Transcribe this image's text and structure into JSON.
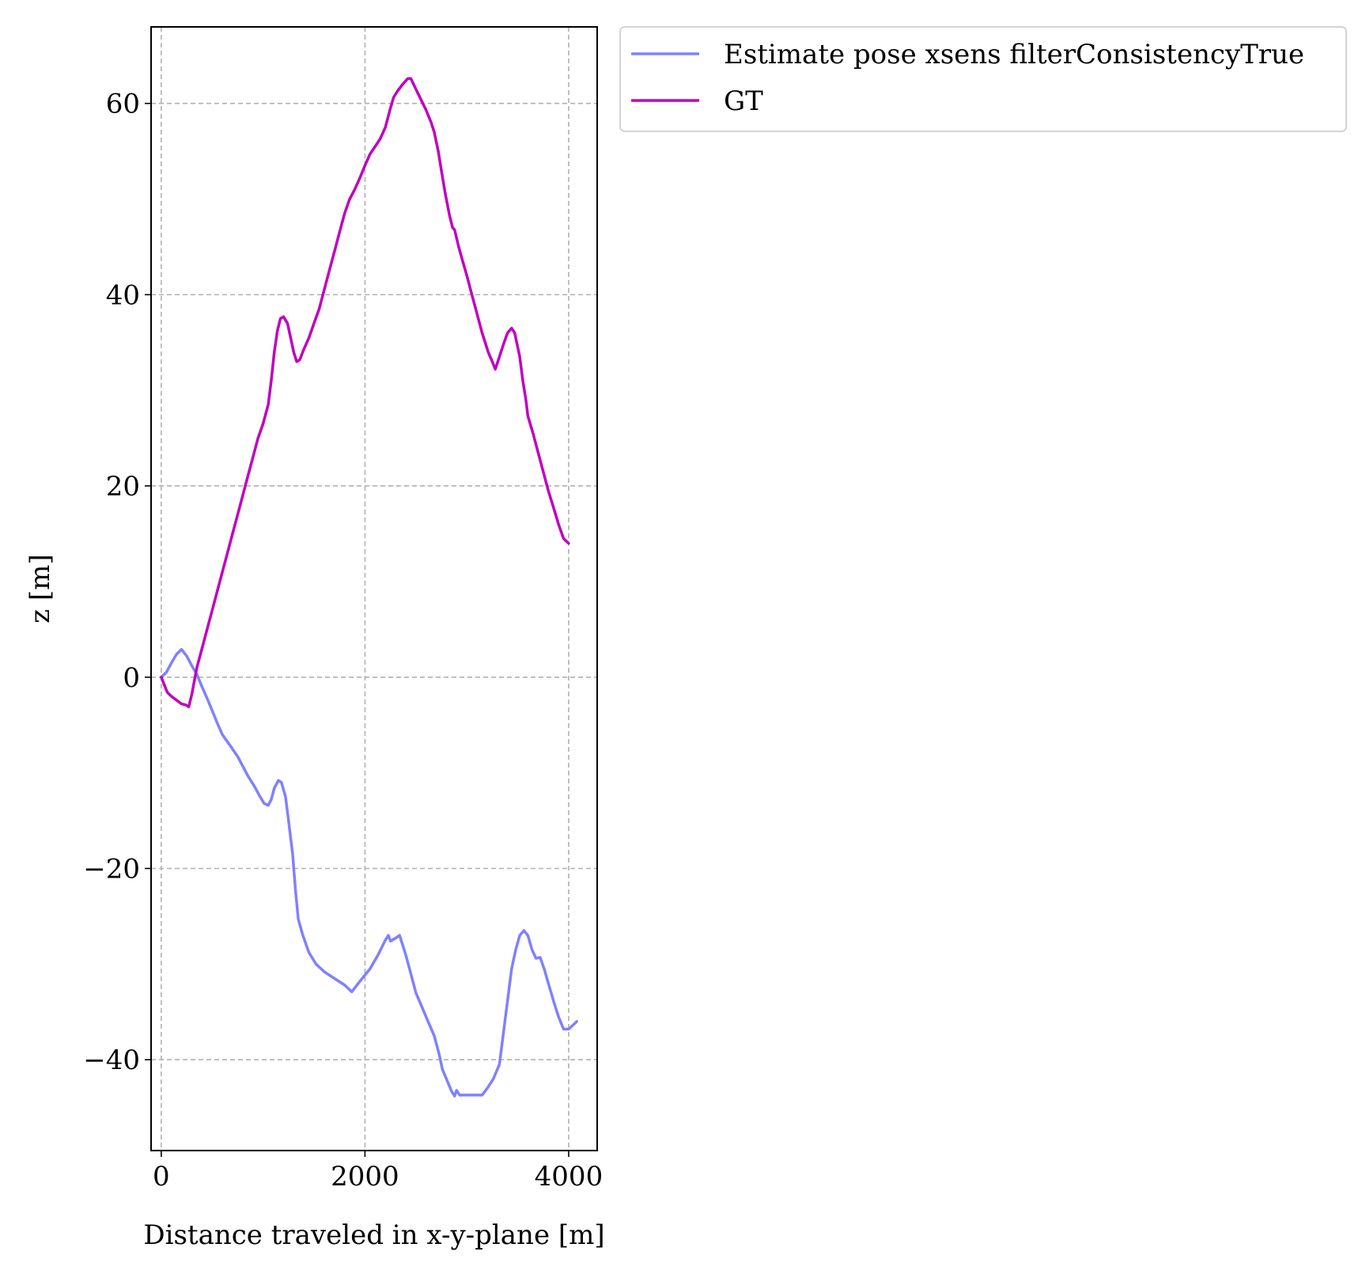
{
  "chart_data": {
    "type": "line",
    "title": "",
    "xlabel": "Distance traveled in x-y-plane [m]",
    "ylabel": "z [m]",
    "xlim": [
      -100,
      4280
    ],
    "ylim": [
      -49.5,
      68
    ],
    "xticks": [
      0,
      2000,
      4000
    ],
    "yticks": [
      -40,
      -20,
      0,
      20,
      40,
      60
    ],
    "xtick_labels": [
      "0",
      "2000",
      "4000"
    ],
    "ytick_labels": [
      "−40",
      "−20",
      "0",
      "20",
      "40",
      "60"
    ],
    "grid": true,
    "legend_position": "outside upper right",
    "series": [
      {
        "name": "Estimate pose xsens filterConsistencyTrue",
        "color": "#8080ff",
        "points": [
          [
            0,
            0
          ],
          [
            50,
            0.5
          ],
          [
            100,
            1.5
          ],
          [
            150,
            2.4
          ],
          [
            200,
            2.9
          ],
          [
            250,
            2.2
          ],
          [
            300,
            1.2
          ],
          [
            350,
            0.3
          ],
          [
            400,
            -1
          ],
          [
            450,
            -2.2
          ],
          [
            500,
            -3.5
          ],
          [
            550,
            -4.8
          ],
          [
            600,
            -6
          ],
          [
            680,
            -7.2
          ],
          [
            750,
            -8.3
          ],
          [
            800,
            -9.3
          ],
          [
            850,
            -10.3
          ],
          [
            920,
            -11.5
          ],
          [
            970,
            -12.5
          ],
          [
            1010,
            -13.2
          ],
          [
            1050,
            -13.4
          ],
          [
            1080,
            -12.8
          ],
          [
            1110,
            -11.6
          ],
          [
            1150,
            -10.8
          ],
          [
            1180,
            -11
          ],
          [
            1220,
            -12.5
          ],
          [
            1250,
            -15
          ],
          [
            1290,
            -18.5
          ],
          [
            1320,
            -22.5
          ],
          [
            1345,
            -25.3
          ],
          [
            1390,
            -27
          ],
          [
            1450,
            -28.8
          ],
          [
            1520,
            -30
          ],
          [
            1600,
            -30.8
          ],
          [
            1700,
            -31.5
          ],
          [
            1800,
            -32.2
          ],
          [
            1870,
            -32.9
          ],
          [
            1950,
            -31.8
          ],
          [
            2050,
            -30.5
          ],
          [
            2130,
            -29
          ],
          [
            2200,
            -27.5
          ],
          [
            2230,
            -27
          ],
          [
            2250,
            -27.6
          ],
          [
            2300,
            -27.3
          ],
          [
            2340,
            -27
          ],
          [
            2400,
            -29
          ],
          [
            2450,
            -31
          ],
          [
            2500,
            -33
          ],
          [
            2560,
            -34.5
          ],
          [
            2620,
            -36
          ],
          [
            2680,
            -37.5
          ],
          [
            2730,
            -39.5
          ],
          [
            2760,
            -41
          ],
          [
            2800,
            -42
          ],
          [
            2850,
            -43.3
          ],
          [
            2880,
            -43.8
          ],
          [
            2900,
            -43.2
          ],
          [
            2930,
            -43.7
          ],
          [
            3000,
            -43.7
          ],
          [
            3100,
            -43.7
          ],
          [
            3150,
            -43.7
          ],
          [
            3200,
            -43
          ],
          [
            3260,
            -42
          ],
          [
            3320,
            -40.5
          ],
          [
            3380,
            -35.5
          ],
          [
            3440,
            -30.5
          ],
          [
            3480,
            -28.5
          ],
          [
            3520,
            -27
          ],
          [
            3560,
            -26.5
          ],
          [
            3600,
            -27
          ],
          [
            3640,
            -28.5
          ],
          [
            3680,
            -29.4
          ],
          [
            3720,
            -29.3
          ],
          [
            3760,
            -30.5
          ],
          [
            3800,
            -32
          ],
          [
            3850,
            -33.8
          ],
          [
            3900,
            -35.5
          ],
          [
            3950,
            -36.8
          ],
          [
            4000,
            -36.8
          ],
          [
            4050,
            -36.3
          ],
          [
            4080,
            -36
          ]
        ]
      },
      {
        "name": "GT",
        "color": "#bf00bf",
        "points": [
          [
            0,
            0
          ],
          [
            30,
            -0.8
          ],
          [
            60,
            -1.6
          ],
          [
            100,
            -2
          ],
          [
            150,
            -2.4
          ],
          [
            200,
            -2.8
          ],
          [
            240,
            -2.9
          ],
          [
            270,
            -3.1
          ],
          [
            300,
            -1.8
          ],
          [
            350,
            1
          ],
          [
            400,
            3
          ],
          [
            450,
            5
          ],
          [
            500,
            7
          ],
          [
            550,
            9
          ],
          [
            600,
            11
          ],
          [
            650,
            13
          ],
          [
            700,
            15
          ],
          [
            750,
            17
          ],
          [
            800,
            19
          ],
          [
            850,
            21
          ],
          [
            900,
            23
          ],
          [
            950,
            25
          ],
          [
            1000,
            26.5
          ],
          [
            1050,
            28.5
          ],
          [
            1080,
            31
          ],
          [
            1110,
            34
          ],
          [
            1140,
            36.2
          ],
          [
            1170,
            37.5
          ],
          [
            1200,
            37.7
          ],
          [
            1240,
            37
          ],
          [
            1270,
            35.5
          ],
          [
            1300,
            34
          ],
          [
            1330,
            33
          ],
          [
            1360,
            33.2
          ],
          [
            1400,
            34.3
          ],
          [
            1450,
            35.5
          ],
          [
            1500,
            37
          ],
          [
            1550,
            38.5
          ],
          [
            1600,
            40.5
          ],
          [
            1650,
            42.5
          ],
          [
            1700,
            44.5
          ],
          [
            1750,
            46.5
          ],
          [
            1800,
            48.5
          ],
          [
            1850,
            50
          ],
          [
            1900,
            51
          ],
          [
            1950,
            52.2
          ],
          [
            2000,
            53.5
          ],
          [
            2050,
            54.7
          ],
          [
            2100,
            55.5
          ],
          [
            2150,
            56.3
          ],
          [
            2200,
            57.5
          ],
          [
            2250,
            59.5
          ],
          [
            2280,
            60.6
          ],
          [
            2320,
            61.3
          ],
          [
            2370,
            62
          ],
          [
            2420,
            62.6
          ],
          [
            2450,
            62.6
          ],
          [
            2500,
            61.5
          ],
          [
            2550,
            60.4
          ],
          [
            2600,
            59.3
          ],
          [
            2650,
            58
          ],
          [
            2680,
            57
          ],
          [
            2720,
            55
          ],
          [
            2750,
            53
          ],
          [
            2790,
            50.5
          ],
          [
            2830,
            48.3
          ],
          [
            2860,
            47
          ],
          [
            2880,
            46.8
          ],
          [
            2920,
            45
          ],
          [
            2960,
            43.5
          ],
          [
            3000,
            42
          ],
          [
            3050,
            40
          ],
          [
            3100,
            38
          ],
          [
            3150,
            36
          ],
          [
            3180,
            35
          ],
          [
            3210,
            34
          ],
          [
            3250,
            33
          ],
          [
            3280,
            32.2
          ],
          [
            3320,
            33.5
          ],
          [
            3360,
            34.8
          ],
          [
            3400,
            36
          ],
          [
            3440,
            36.5
          ],
          [
            3470,
            36
          ],
          [
            3500,
            34.5
          ],
          [
            3520,
            33.5
          ],
          [
            3550,
            31
          ],
          [
            3580,
            29
          ],
          [
            3600,
            27.3
          ],
          [
            3650,
            25.5
          ],
          [
            3700,
            23.5
          ],
          [
            3750,
            21.5
          ],
          [
            3800,
            19.5
          ],
          [
            3850,
            17.8
          ],
          [
            3900,
            16
          ],
          [
            3950,
            14.5
          ],
          [
            4000,
            14
          ]
        ]
      }
    ]
  }
}
